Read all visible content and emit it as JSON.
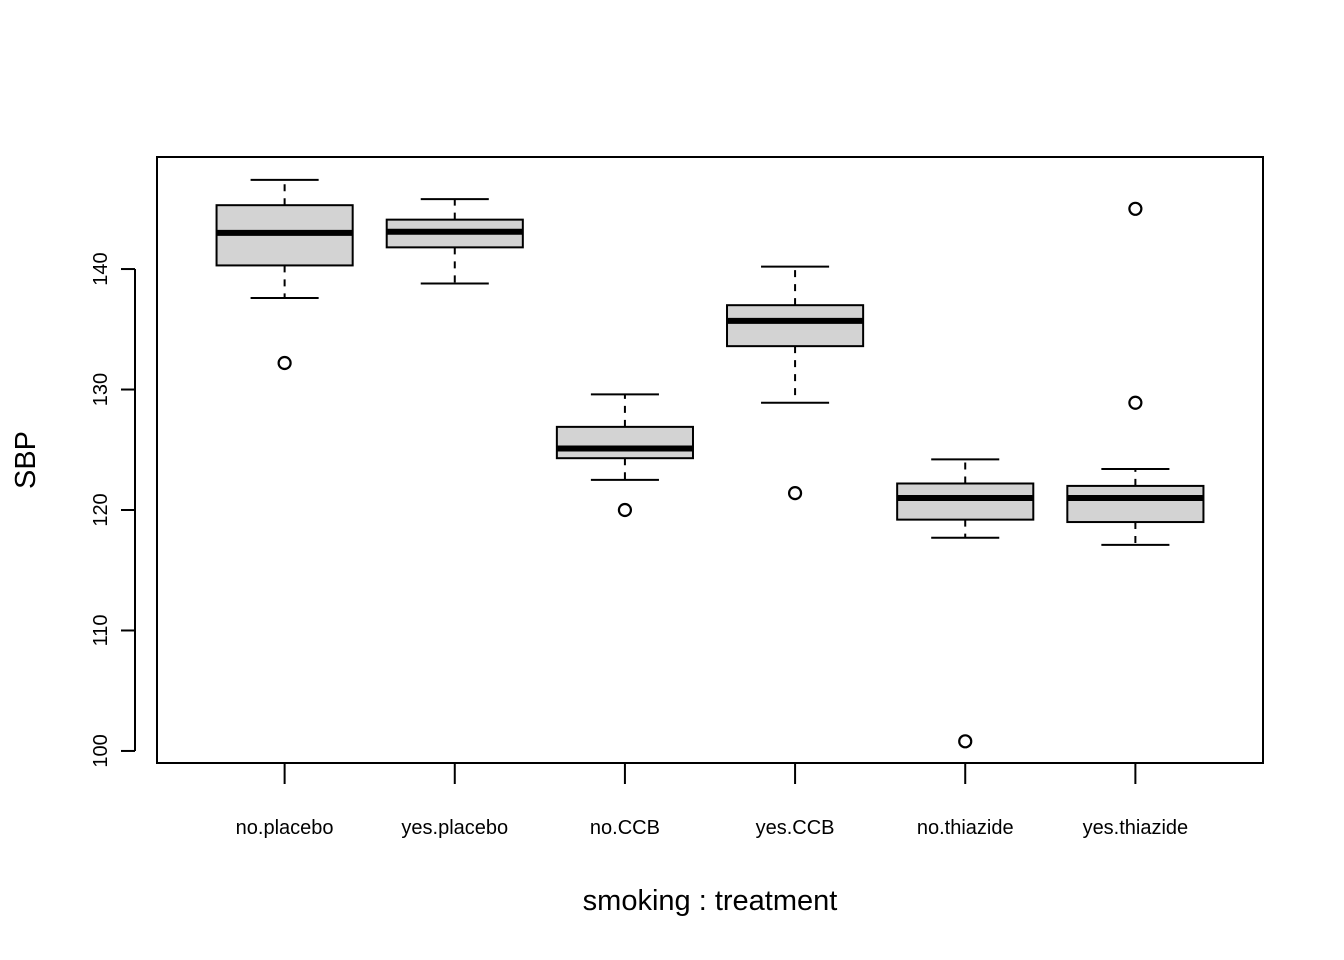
{
  "chart_data": {
    "type": "boxplot",
    "title": "",
    "xlabel": "smoking : treatment",
    "ylabel": "SBP",
    "ylim": [
      99,
      149.3
    ],
    "yticks": [
      100,
      110,
      120,
      130,
      140
    ],
    "grid": false,
    "legend": "none",
    "box_fill": "#d3d3d3",
    "line_color": "#000000",
    "categories": [
      "no.placebo",
      "yes.placebo",
      "no.CCB",
      "yes.CCB",
      "no.thiazide",
      "yes.thiazide"
    ],
    "boxes": [
      {
        "category": "no.placebo",
        "whisker_low": 137.6,
        "q1": 140.3,
        "median": 143.0,
        "q3": 145.3,
        "whisker_high": 147.4,
        "outliers": [
          132.2
        ]
      },
      {
        "category": "yes.placebo",
        "whisker_low": 138.8,
        "q1": 141.8,
        "median": 143.1,
        "q3": 144.1,
        "whisker_high": 145.8,
        "outliers": []
      },
      {
        "category": "no.CCB",
        "whisker_low": 122.5,
        "q1": 124.3,
        "median": 125.1,
        "q3": 126.9,
        "whisker_high": 129.6,
        "outliers": [
          120.0
        ]
      },
      {
        "category": "yes.CCB",
        "whisker_low": 128.9,
        "q1": 133.6,
        "median": 135.7,
        "q3": 137.0,
        "whisker_high": 140.2,
        "outliers": [
          121.4
        ]
      },
      {
        "category": "no.thiazide",
        "whisker_low": 117.7,
        "q1": 119.2,
        "median": 121.0,
        "q3": 122.2,
        "whisker_high": 124.2,
        "outliers": [
          100.8
        ]
      },
      {
        "category": "yes.thiazide",
        "whisker_low": 117.1,
        "q1": 119.0,
        "median": 121.0,
        "q3": 122.0,
        "whisker_high": 123.4,
        "outliers": [
          145.0,
          128.9
        ]
      }
    ]
  }
}
